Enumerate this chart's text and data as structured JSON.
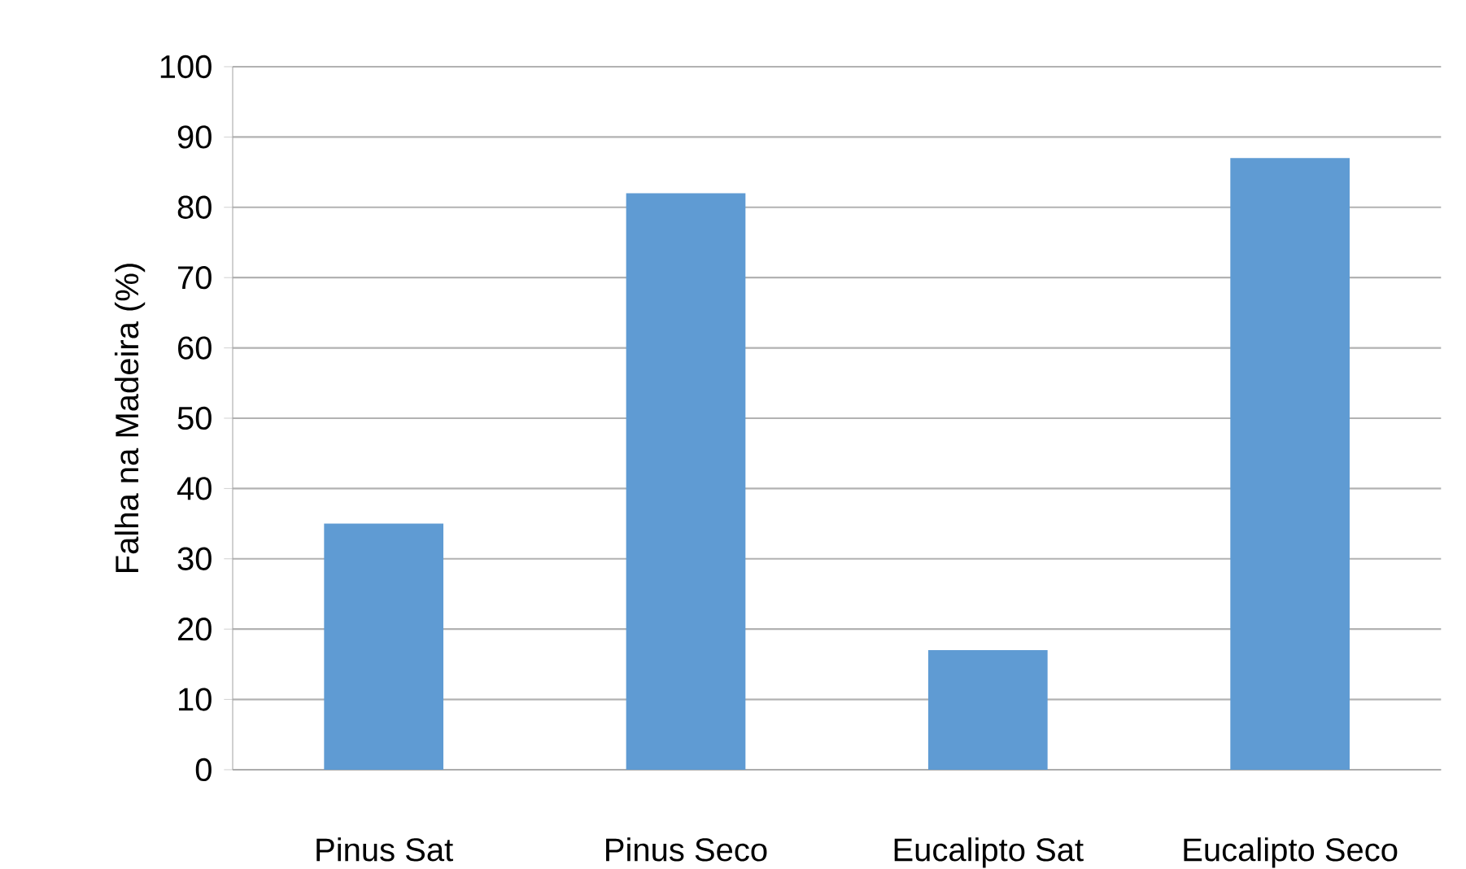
{
  "chart_data": {
    "type": "bar",
    "ylabel": "Falha na Madeira (%)",
    "categories": [
      "Pinus Sat",
      "Pinus Seco",
      "Eucalipto Sat",
      "Eucalipto Seco"
    ],
    "values": [
      35,
      82,
      17,
      87
    ],
    "color": "#5f9bd3",
    "ylim": [
      0,
      100
    ],
    "yticks": [
      0,
      10,
      20,
      30,
      40,
      50,
      60,
      70,
      80,
      90,
      100
    ],
    "grid": "y"
  }
}
